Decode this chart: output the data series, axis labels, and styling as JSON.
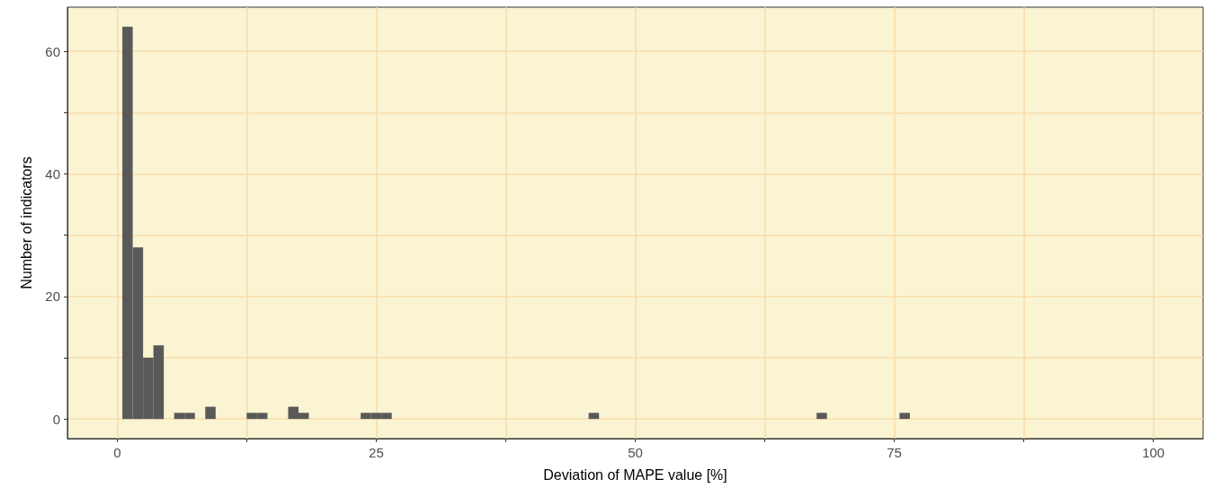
{
  "chart_data": {
    "type": "histogram",
    "xlabel": "Deviation of MAPE value [%]",
    "ylabel": "Number of indicators",
    "bins": [
      0.5,
      1.5,
      2.5,
      3.5,
      4.5,
      5.5,
      6.5,
      7.5,
      8.5,
      9.5,
      10.5,
      11.5,
      12.5,
      13.5,
      14.5,
      15.5,
      16.5,
      17.5,
      18.5,
      19.5,
      20.5,
      21.5,
      22.5,
      23.5,
      24.5,
      25.5,
      26.5,
      27.5,
      28.5,
      29.5,
      30.5,
      31.5,
      32.5,
      33.5,
      34.5,
      35.5,
      36.5,
      37.5,
      38.5,
      39.5,
      40.5,
      41.5,
      42.5,
      43.5,
      44.5,
      45.5,
      46.5,
      47.5,
      48.5,
      49.5,
      50.5,
      51.5,
      52.5,
      53.5,
      54.5,
      55.5,
      56.5,
      57.5,
      58.5,
      59.5,
      60.5,
      61.5,
      62.5,
      63.5,
      64.5,
      65.5,
      66.5,
      67.5,
      68.5,
      69.5,
      70.5,
      71.5,
      72.5,
      73.5,
      74.5,
      75.5,
      76.5
    ],
    "values": [
      64,
      28,
      10,
      12,
      0,
      1,
      1,
      0,
      2,
      0,
      0,
      0,
      1,
      1,
      0,
      0,
      2,
      1,
      0,
      0,
      0,
      0,
      0,
      1,
      1,
      1,
      0,
      0,
      0,
      0,
      0,
      0,
      0,
      0,
      0,
      0,
      0,
      0,
      0,
      0,
      0,
      0,
      0,
      0,
      0,
      1,
      0,
      0,
      0,
      0,
      0,
      0,
      0,
      0,
      0,
      0,
      0,
      0,
      0,
      0,
      0,
      0,
      0,
      0,
      0,
      0,
      0,
      1,
      0,
      0,
      0,
      0,
      0,
      0,
      0,
      1
    ],
    "color": "#595959",
    "xlim": [
      -4.8,
      104.8
    ],
    "xticks": [
      0,
      {
        "value": 12.5,
        "label": null
      },
      25,
      {
        "value": 37.5,
        "label": null
      },
      50,
      {
        "value": 62.5,
        "label": null
      },
      75,
      {
        "value": 87.5,
        "label": null
      },
      100
    ],
    "ylim": [
      -3.2,
      67.2
    ],
    "yticks": [
      0,
      {
        "value": 10,
        "label": null
      },
      20,
      {
        "value": 30,
        "label": null
      },
      40,
      {
        "value": 50,
        "label": null
      },
      60
    ],
    "grid": true
  }
}
